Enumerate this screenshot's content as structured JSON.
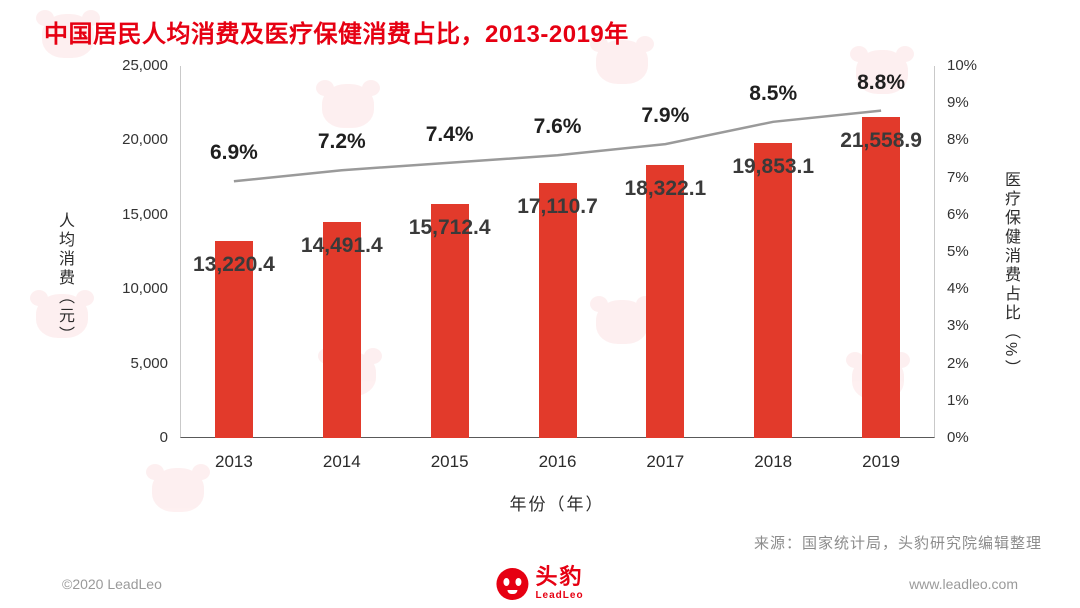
{
  "header": {
    "title": "中国居民人均消费及医疗保健消费占比，2013-2019年"
  },
  "colors": {
    "bar": "#e23a2b",
    "line": "#9a9a9a",
    "title": "#e60012",
    "label": "#3a3a3a"
  },
  "chart_data": {
    "type": "bar+line",
    "categories": [
      "2013",
      "2014",
      "2015",
      "2016",
      "2017",
      "2018",
      "2019"
    ],
    "series": [
      {
        "name": "人均消费（元）",
        "type": "bar",
        "axis": "left",
        "values": [
          13220.4,
          14491.4,
          15712.4,
          17110.7,
          18322.1,
          19853.1,
          21558.9
        ],
        "labels": [
          "13,220.4",
          "14,491.4",
          "15,712.4",
          "17,110.7",
          "18,322.1",
          "19,853.1",
          "21,558.9"
        ]
      },
      {
        "name": "医疗保健消费占比（%）",
        "type": "line",
        "axis": "right",
        "values": [
          6.9,
          7.2,
          7.4,
          7.6,
          7.9,
          8.5,
          8.8
        ],
        "labels": [
          "6.9%",
          "7.2%",
          "7.4%",
          "7.6%",
          "7.9%",
          "8.5%",
          "8.8%"
        ]
      }
    ],
    "left_axis": {
      "title": "人均消费（元）",
      "max": 25000,
      "ticks": [
        "25,000",
        "20,000",
        "15,000",
        "10,000",
        "5,000",
        "0"
      ]
    },
    "right_axis": {
      "title": "医疗保健消费占比（%）",
      "max": 10,
      "ticks": [
        "10%",
        "9%",
        "8%",
        "7%",
        "6%",
        "5%",
        "4%",
        "3%",
        "2%",
        "1%",
        "0%"
      ]
    },
    "x_axis": {
      "title": "年份（年）"
    },
    "grid": false,
    "legend": "none"
  },
  "source": "来源：国家统计局，头豹研究院编辑整理",
  "footer": {
    "copyright": "©2020 LeadLeo",
    "brand": "头豹",
    "brand_sub": "LeadLeo",
    "website": "www.leadleo.com"
  }
}
